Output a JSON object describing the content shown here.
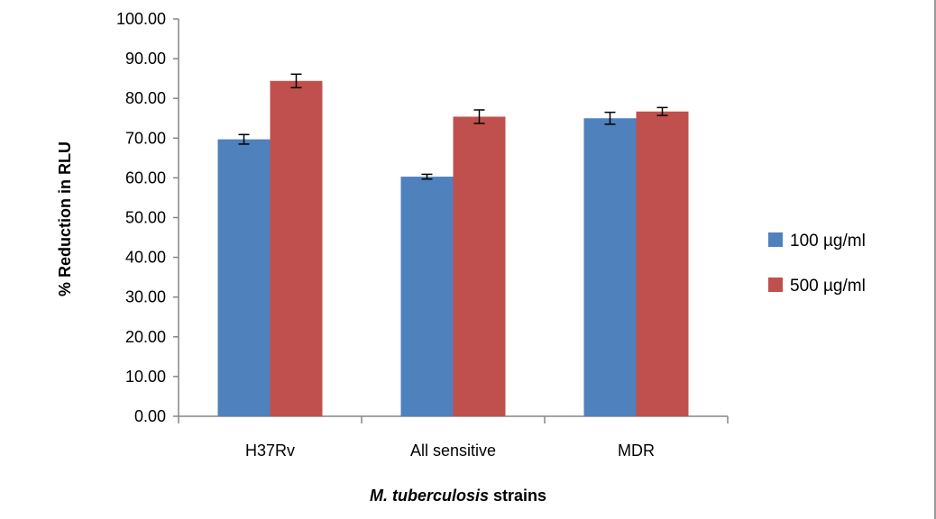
{
  "chart_data": {
    "type": "bar",
    "title": "",
    "xlabel_italic": "M. tuberculosis",
    "xlabel_rest": " strains",
    "ylabel": "% Reduction in RLU",
    "ylim": [
      0,
      100
    ],
    "yticks": [
      "0.00",
      "10.00",
      "20.00",
      "30.00",
      "40.00",
      "50.00",
      "60.00",
      "70.00",
      "80.00",
      "90.00",
      "100.00"
    ],
    "categories": [
      "H37Rv",
      "All sensitive",
      "MDR"
    ],
    "series": [
      {
        "name": "100 µg/ml",
        "color": "#4f81bd",
        "values": [
          69.7,
          60.3,
          75.0
        ],
        "errors": [
          1.2,
          0.6,
          1.5
        ]
      },
      {
        "name": "500 µg/ml",
        "color": "#c0504d",
        "values": [
          84.4,
          75.4,
          76.7
        ],
        "errors": [
          1.7,
          1.7,
          1.0
        ]
      }
    ],
    "grid": false,
    "legend_position": "right"
  }
}
